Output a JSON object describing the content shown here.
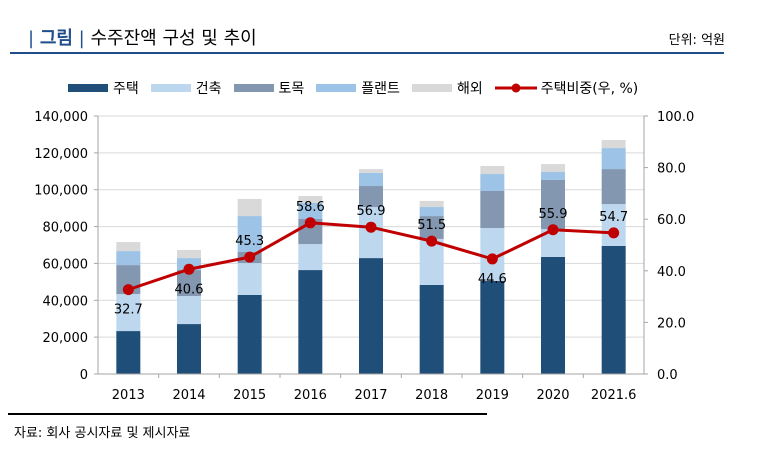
{
  "header": {
    "bar1": "|",
    "tag": "그림",
    "bar2": "|",
    "title": "수주잔액 구성 및 추이",
    "unit": "단위: 억원"
  },
  "footer": {
    "source": "자료: 회사 공시자료 및 제시자료"
  },
  "colors": {
    "주택": "#1f4e79",
    "건축": "#bdd7ee",
    "토목": "#8497b0",
    "플랜트": "#9dc3e6",
    "해외": "#d9d9d9",
    "line": "#c00000",
    "accent": "#1f4e8c"
  },
  "chart_data": {
    "type": "bar",
    "stacked": true,
    "title": "수주잔액 구성 및 추이",
    "categories": [
      "2013",
      "2014",
      "2015",
      "2016",
      "2017",
      "2018",
      "2019",
      "2020",
      "2021.6"
    ],
    "series": [
      {
        "name": "주택",
        "values": [
          23300,
          27100,
          42900,
          56400,
          62900,
          48300,
          50500,
          63500,
          69500
        ]
      },
      {
        "name": "건축",
        "values": [
          20100,
          15200,
          17300,
          14100,
          27700,
          25000,
          28700,
          15200,
          22700
        ]
      },
      {
        "name": "토목",
        "values": [
          15700,
          14100,
          6000,
          13600,
          11400,
          12400,
          20100,
          26600,
          19000
        ]
      },
      {
        "name": "플랜트",
        "values": [
          7600,
          6500,
          19500,
          8700,
          7100,
          4900,
          9200,
          4300,
          11400
        ]
      },
      {
        "name": "해외",
        "values": [
          4900,
          4400,
          9300,
          3800,
          2100,
          3300,
          4400,
          4300,
          4400
        ]
      }
    ],
    "line_series": {
      "name": "주택비중(우, %)",
      "axis": "right",
      "values": [
        32.7,
        40.6,
        45.3,
        58.6,
        56.9,
        51.5,
        44.6,
        55.9,
        54.7
      ],
      "labels": [
        "32.7",
        "40.6",
        "45.3",
        "58.6",
        "56.9",
        "51.5",
        "44.6",
        "55.9",
        "54.7"
      ]
    },
    "y_left": {
      "ylim": [
        0,
        140000
      ],
      "ticks": [
        "0",
        "20,000",
        "40,000",
        "60,000",
        "80,000",
        "100,000",
        "120,000",
        "140,000"
      ]
    },
    "y_right": {
      "ylim": [
        0,
        100
      ],
      "ticks": [
        "0.0",
        "20.0",
        "40.0",
        "60.0",
        "80.0",
        "100.0"
      ]
    },
    "xlabel": "",
    "ylabel": "",
    "grid": true,
    "legend": "top",
    "legend_entries": [
      "주택",
      "건축",
      "토목",
      "플랜트",
      "해외",
      "주택비중(우, %)"
    ]
  }
}
